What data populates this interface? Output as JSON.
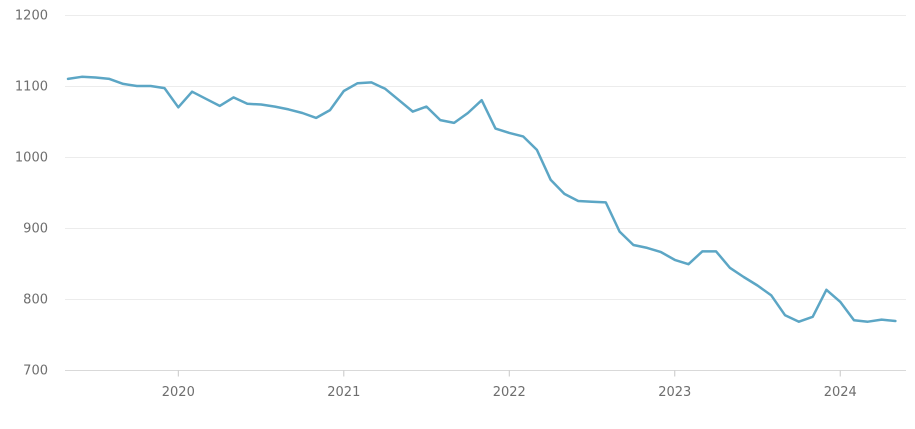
{
  "chart": {
    "background": "#ffffff",
    "line_color": "#5ca6c5",
    "grid_color": "#ececec",
    "axis_line_color": "#d9d9d9",
    "tick_color": "#c8c8c8",
    "label_color": "#6e6e6e"
  },
  "chart_data": {
    "type": "line",
    "title": "",
    "xlabel": "",
    "ylabel": "",
    "legend": "none",
    "grid": "horizontal",
    "ylim": [
      700,
      1200
    ],
    "y_ticks": [
      700,
      800,
      900,
      1000,
      1100,
      1200
    ],
    "x_tick_labels": [
      "2020",
      "2021",
      "2022",
      "2023",
      "2024"
    ],
    "x": [
      "2019-05",
      "2019-06",
      "2019-07",
      "2019-08",
      "2019-09",
      "2019-10",
      "2019-11",
      "2019-12",
      "2020-01",
      "2020-02",
      "2020-03",
      "2020-04",
      "2020-05",
      "2020-06",
      "2020-07",
      "2020-08",
      "2020-09",
      "2020-10",
      "2020-11",
      "2020-12",
      "2021-01",
      "2021-02",
      "2021-03",
      "2021-04",
      "2021-05",
      "2021-06",
      "2021-07",
      "2021-08",
      "2021-09",
      "2021-10",
      "2021-11",
      "2021-12",
      "2022-01",
      "2022-02",
      "2022-03",
      "2022-04",
      "2022-05",
      "2022-06",
      "2022-07",
      "2022-08",
      "2022-09",
      "2022-10",
      "2022-11",
      "2022-12",
      "2023-01",
      "2023-02",
      "2023-03",
      "2023-04",
      "2023-05",
      "2023-06",
      "2023-07",
      "2023-08",
      "2023-09",
      "2023-10",
      "2023-11",
      "2023-12",
      "2024-01",
      "2024-02",
      "2024-03",
      "2024-04",
      "2024-05"
    ],
    "values": [
      1110,
      1113,
      1112,
      1110,
      1103,
      1100,
      1100,
      1097,
      1070,
      1092,
      1082,
      1072,
      1084,
      1075,
      1074,
      1071,
      1067,
      1062,
      1055,
      1066,
      1093,
      1104,
      1105,
      1096,
      1080,
      1064,
      1071,
      1052,
      1048,
      1062,
      1080,
      1040,
      1034,
      1029,
      1010,
      968,
      948,
      938,
      937,
      936,
      895,
      876,
      872,
      866,
      855,
      849,
      867,
      867,
      844,
      831,
      819,
      805,
      777,
      768,
      775,
      813,
      796,
      770,
      768,
      771,
      769
    ]
  }
}
